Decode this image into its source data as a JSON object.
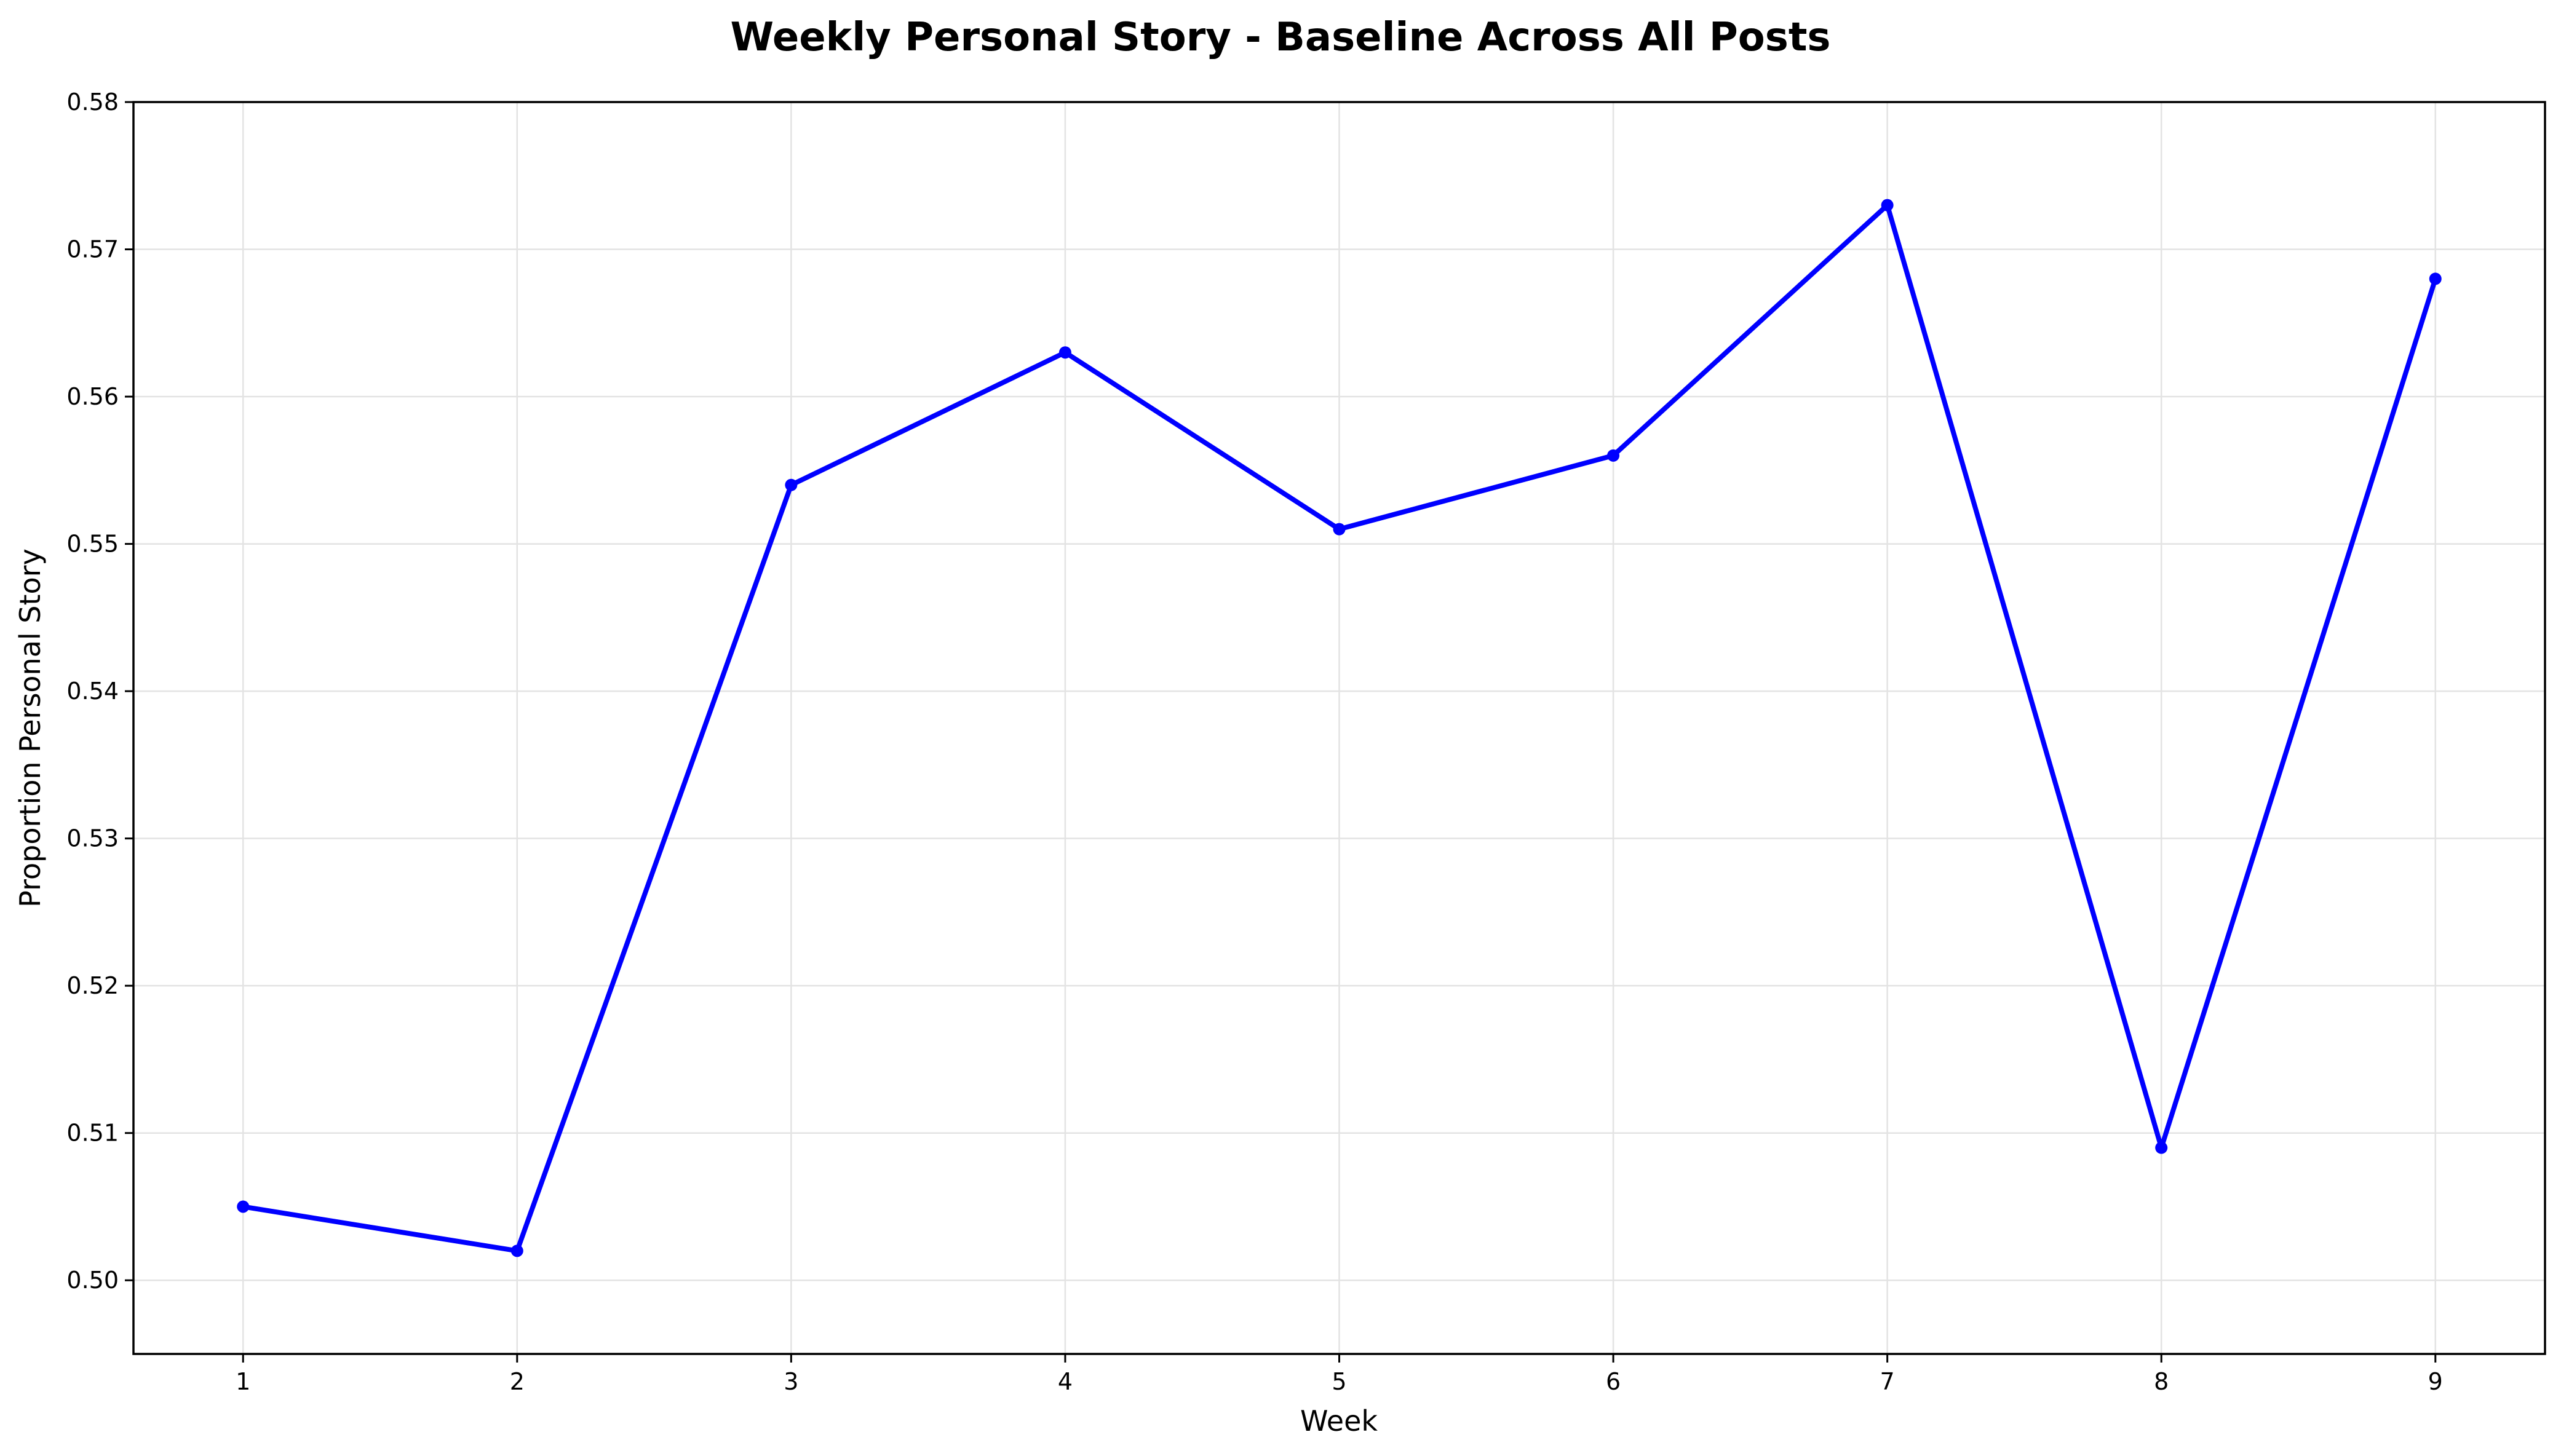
{
  "chart_data": {
    "type": "line",
    "title": "Weekly Personal Story - Baseline Across All Posts",
    "xlabel": "Week",
    "ylabel": "Proportion Personal Story",
    "x": [
      1,
      2,
      3,
      4,
      5,
      6,
      7,
      8,
      9
    ],
    "xlim": [
      0.6,
      9.4
    ],
    "ylim": [
      0.495,
      0.58
    ],
    "x_ticks": [
      "1",
      "2",
      "3",
      "4",
      "5",
      "6",
      "7",
      "8",
      "9"
    ],
    "y_ticks": [
      "0.50",
      "0.51",
      "0.52",
      "0.53",
      "0.54",
      "0.55",
      "0.56",
      "0.57",
      "0.58"
    ],
    "grid": true,
    "legend": "none",
    "series": [
      {
        "color": "#0000ff",
        "marker": "circle",
        "values": [
          0.505,
          0.502,
          0.554,
          0.563,
          0.551,
          0.556,
          0.573,
          0.509,
          0.568
        ]
      }
    ]
  }
}
